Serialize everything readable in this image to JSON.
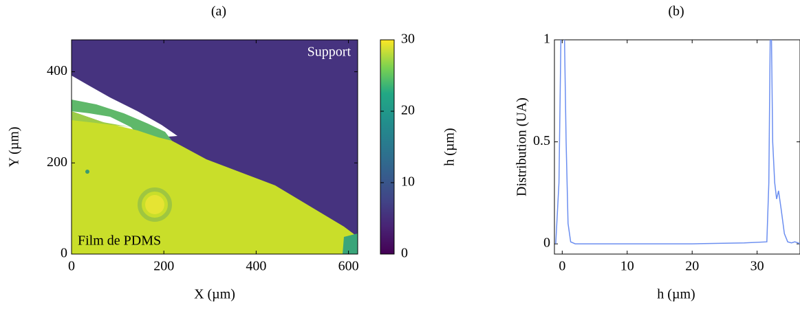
{
  "chart_data": [
    {
      "type": "heatmap",
      "title": "(a)",
      "xlabel": "X (µm)",
      "ylabel": "Y (µm)",
      "xlim": [
        0,
        620
      ],
      "ylim": [
        0,
        470
      ],
      "xticks": [
        0,
        200,
        400,
        600
      ],
      "yticks": [
        0,
        200,
        400
      ],
      "colorbar_label": "h (µm)",
      "clim": [
        0,
        30
      ],
      "cticks": [
        0,
        10,
        20,
        30
      ],
      "annotations": [
        "Support",
        "Film de PDMS"
      ]
    },
    {
      "type": "line",
      "title": "(b)",
      "xlabel": "h (µm)",
      "ylabel": "Distribution (UA)",
      "xlim": [
        -1.2,
        36.6
      ],
      "ylim": [
        -0.05,
        1
      ],
      "xticks": [
        0,
        10,
        20,
        30
      ],
      "yticks": [
        0,
        0.5,
        1
      ],
      "color": "#6b8ef0",
      "x": [
        -1,
        -0.5,
        -0.2,
        0,
        0.3,
        0.6,
        0.9,
        1.3,
        2,
        10,
        20,
        28,
        31.5,
        31.8,
        32.1,
        32.4,
        32.7,
        33,
        33.3,
        33.7,
        34.2,
        34.7,
        35.3,
        35.8,
        36.3,
        36.6
      ],
      "values": [
        0,
        0.3,
        1.0,
        1.2,
        1.1,
        0.5,
        0.1,
        0.01,
        0,
        0,
        0,
        0.005,
        0.01,
        0.3,
        1.3,
        0.5,
        0.3,
        0.22,
        0.26,
        0.17,
        0.05,
        0.01,
        0.005,
        0.01,
        0.005,
        0
      ]
    }
  ]
}
